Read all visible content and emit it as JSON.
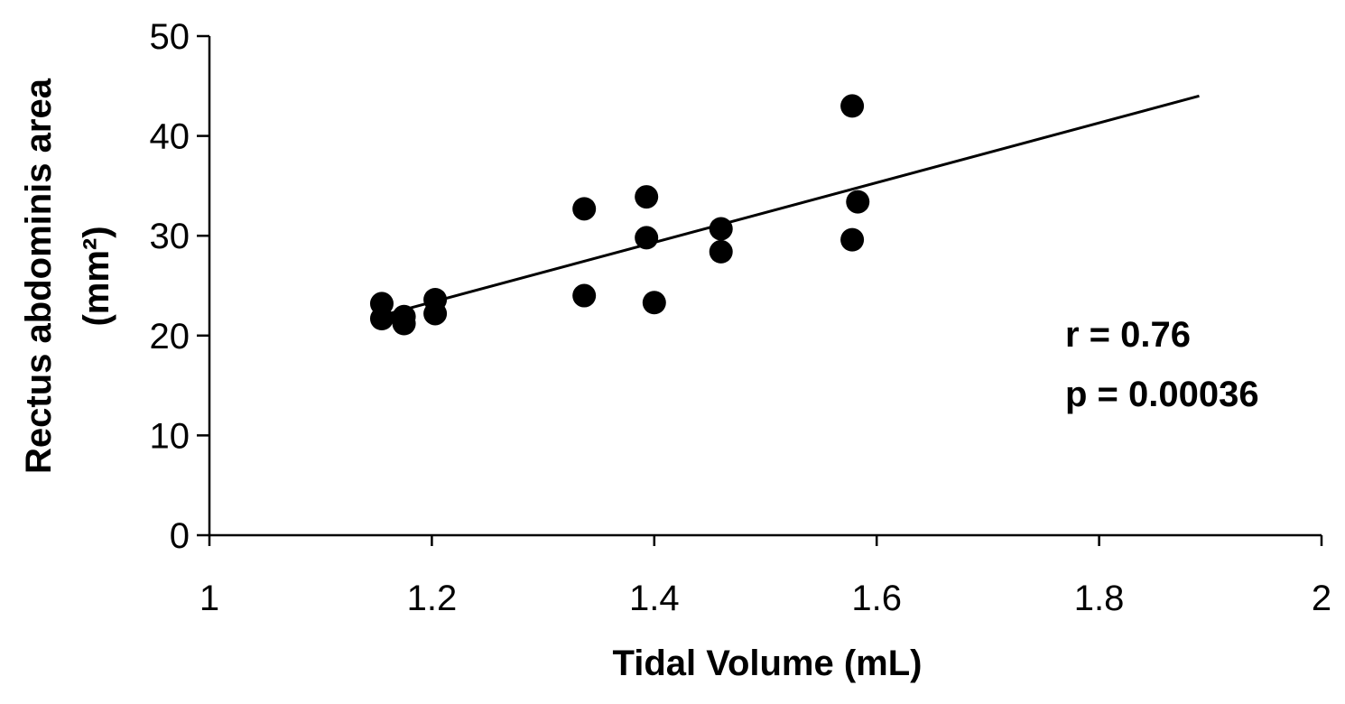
{
  "chart_data": {
    "type": "scatter",
    "title": "",
    "xlabel": "Tidal Volume (mL)",
    "ylabel_line1": "Rectus abdominis area",
    "ylabel_line2": "(mm²)",
    "xlim": [
      1,
      2
    ],
    "ylim": [
      0,
      50
    ],
    "x_ticks": [
      1,
      1.2,
      1.4,
      1.6,
      1.8,
      2
    ],
    "x_tick_labels": [
      "1",
      "1.2",
      "1.4",
      "1.6",
      "1.8",
      "2"
    ],
    "y_ticks": [
      0,
      10,
      20,
      30,
      40,
      50
    ],
    "y_tick_labels": [
      "0",
      "10",
      "20",
      "30",
      "40",
      "50"
    ],
    "grid": false,
    "points": [
      {
        "x": 1.155,
        "y": 23.2
      },
      {
        "x": 1.155,
        "y": 21.7
      },
      {
        "x": 1.175,
        "y": 21.9
      },
      {
        "x": 1.175,
        "y": 21.2
      },
      {
        "x": 1.203,
        "y": 23.6
      },
      {
        "x": 1.203,
        "y": 22.2
      },
      {
        "x": 1.337,
        "y": 32.7
      },
      {
        "x": 1.337,
        "y": 24.0
      },
      {
        "x": 1.393,
        "y": 33.9
      },
      {
        "x": 1.393,
        "y": 29.8
      },
      {
        "x": 1.4,
        "y": 23.3
      },
      {
        "x": 1.46,
        "y": 30.7
      },
      {
        "x": 1.46,
        "y": 28.4
      },
      {
        "x": 1.578,
        "y": 43.0
      },
      {
        "x": 1.583,
        "y": 33.4
      },
      {
        "x": 1.578,
        "y": 29.6
      }
    ],
    "trendline": {
      "x": [
        1.155,
        1.89
      ],
      "y": [
        22.0,
        44.0
      ]
    },
    "annotations": {
      "r": "r = 0.76",
      "p": "p = 0.00036"
    }
  }
}
